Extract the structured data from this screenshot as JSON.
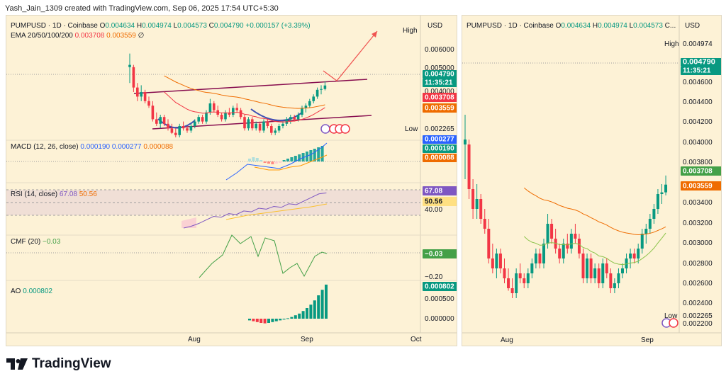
{
  "attribution": "Yash_Jain_1309 created with TradingView.com, Sep 06, 2025 17:54 UTC+5:30",
  "brand": "TradingView",
  "colors": {
    "background": "#fdf2d6",
    "up": "#089981",
    "down": "#f23645",
    "ema20": "#8bc34a",
    "ema200": "#ef6c00",
    "macd_line": "#2962ff",
    "signal_line": "#ff9800",
    "rsi": "#7e57c2",
    "cmf": "#43a047",
    "channel": "#880e4f",
    "arrow": "#ef5350",
    "cup": "#3f51b5"
  },
  "left": {
    "symbol_line": {
      "symbol": "PUMPUSD · 1D · Coinbase",
      "o": "0.004634",
      "h": "0.004974",
      "l": "0.004573",
      "c": "0.004790",
      "change": "+0.000157 (+3.39%)"
    },
    "ema_label": "EMA 20/50/100/200",
    "ema_values": [
      "0.003708",
      "0.003559",
      "∅"
    ],
    "currency": "USD",
    "high_label": "High",
    "low_label": "Low",
    "low_value": "0.002265",
    "price_ticks": [
      "0.006000",
      "0.005000",
      "0.004000"
    ],
    "price_badge": {
      "value": "0.004790",
      "countdown": "11:35:21"
    },
    "ema20_badge": "0.003708",
    "ema200_badge": "0.003559",
    "macd": {
      "label": "MACD (12, 26, close)",
      "macd": "0.000190",
      "signal": "0.000277",
      "hist": "0.000088",
      "badges": [
        "0.000277",
        "0.000190",
        "0.000088"
      ]
    },
    "rsi": {
      "label": "RSI (14, close)",
      "rsi": "67.08",
      "ma": "50.56",
      "tick": "40.00"
    },
    "cmf": {
      "label": "CMF (20)",
      "value": "−0.03",
      "tick": "−0.20"
    },
    "ao": {
      "label": "AO",
      "value": "0.000802",
      "ticks": [
        "0.000500",
        "0.000000"
      ]
    },
    "time_ticks": [
      "Aug",
      "Sep",
      "Oct"
    ]
  },
  "right": {
    "symbol_line": {
      "symbol": "PUMPUSD · 1D · Coinbase",
      "o": "0.004634",
      "h": "0.004974",
      "l": "0.004573",
      "c": "C..."
    },
    "currency": "USD",
    "high_label": "High",
    "high_value": "0.004974",
    "low_label": "Low",
    "low_value": "0.002265",
    "price_badge": {
      "value": "0.004790",
      "countdown": "11:35:21"
    },
    "ema20_badge": "0.003708",
    "ema200_badge": "0.003559",
    "price_ticks": [
      "0.004600",
      "0.004400",
      "0.004200",
      "0.004000",
      "0.003800",
      "0.003400",
      "0.003200",
      "0.003000",
      "0.002800",
      "0.002600",
      "0.002400",
      "0.002200"
    ],
    "time_ticks": [
      "Aug",
      "Sep"
    ]
  },
  "chart_data": [
    {
      "type": "candlestick",
      "title": "PUMPUSD · 1D · Coinbase",
      "x_start": "2025-07-14",
      "x_end": "2025-09-06",
      "candles": [
        [
          0.0056,
          0.0062,
          0.0049,
          0.0057
        ],
        [
          0.0056,
          0.0057,
          0.0045,
          0.0047
        ],
        [
          0.0047,
          0.0049,
          0.0041,
          0.0043
        ],
        [
          0.0043,
          0.0048,
          0.0041,
          0.0045
        ],
        [
          0.0045,
          0.0046,
          0.004,
          0.0041
        ],
        [
          0.0041,
          0.0043,
          0.0038,
          0.0039
        ],
        [
          0.0039,
          0.0041,
          0.0032,
          0.0033
        ],
        [
          0.0033,
          0.0036,
          0.003,
          0.0031
        ],
        [
          0.0031,
          0.0035,
          0.0029,
          0.0034
        ],
        [
          0.0034,
          0.0035,
          0.003,
          0.0031
        ],
        [
          0.0031,
          0.0033,
          0.0028,
          0.0029
        ],
        [
          0.0029,
          0.0031,
          0.00265,
          0.0027
        ],
        [
          0.0027,
          0.0029,
          0.0025,
          0.0026
        ],
        [
          0.0026,
          0.0031,
          0.0025,
          0.003
        ],
        [
          0.003,
          0.0032,
          0.0028,
          0.0029
        ],
        [
          0.0029,
          0.003,
          0.0027,
          0.0028
        ],
        [
          0.0028,
          0.0031,
          0.0027,
          0.003
        ],
        [
          0.003,
          0.0033,
          0.0029,
          0.0032
        ],
        [
          0.0032,
          0.0035,
          0.0031,
          0.0034
        ],
        [
          0.0034,
          0.0035,
          0.0031,
          0.0032
        ],
        [
          0.0032,
          0.0037,
          0.0031,
          0.0036
        ],
        [
          0.0036,
          0.0042,
          0.0035,
          0.004
        ],
        [
          0.004,
          0.0041,
          0.0036,
          0.0037
        ],
        [
          0.0037,
          0.0039,
          0.0034,
          0.0035
        ],
        [
          0.0035,
          0.0036,
          0.0032,
          0.0033
        ],
        [
          0.0033,
          0.0037,
          0.0032,
          0.0036
        ],
        [
          0.0036,
          0.0038,
          0.0034,
          0.0035
        ],
        [
          0.0035,
          0.0039,
          0.0034,
          0.0038
        ],
        [
          0.0038,
          0.004,
          0.0036,
          0.0037
        ],
        [
          0.0037,
          0.0038,
          0.0033,
          0.0034
        ],
        [
          0.0034,
          0.0035,
          0.0028,
          0.0029
        ],
        [
          0.0029,
          0.0034,
          0.0028,
          0.0033
        ],
        [
          0.0033,
          0.0034,
          0.0028,
          0.0029
        ],
        [
          0.0029,
          0.0032,
          0.0028,
          0.0031
        ],
        [
          0.0031,
          0.0032,
          0.0027,
          0.0028
        ],
        [
          0.0028,
          0.0033,
          0.0027,
          0.0032
        ],
        [
          0.0032,
          0.0033,
          0.0029,
          0.003
        ],
        [
          0.003,
          0.0031,
          0.0026,
          0.0027
        ],
        [
          0.0027,
          0.0029,
          0.0026,
          0.0028
        ],
        [
          0.0028,
          0.0031,
          0.0027,
          0.003
        ],
        [
          0.003,
          0.0032,
          0.0029,
          0.0031
        ],
        [
          0.0031,
          0.0034,
          0.003,
          0.0033
        ],
        [
          0.0033,
          0.0035,
          0.0031,
          0.0034
        ],
        [
          0.0034,
          0.0035,
          0.0032,
          0.0033
        ],
        [
          0.0033,
          0.0036,
          0.0032,
          0.0035
        ],
        [
          0.0035,
          0.0039,
          0.0034,
          0.0038
        ],
        [
          0.0038,
          0.004,
          0.0036,
          0.0039
        ],
        [
          0.0039,
          0.0042,
          0.0038,
          0.0041
        ],
        [
          0.0041,
          0.0044,
          0.004,
          0.0043
        ],
        [
          0.0043,
          0.0047,
          0.0042,
          0.0046
        ],
        [
          0.0046,
          0.0048,
          0.0044,
          0.004634
        ],
        [
          0.004634,
          0.004974,
          0.004573,
          0.00479
        ]
      ],
      "ema20_end": 0.003708,
      "ema200_end": 0.003559,
      "ylim": [
        0.0021,
        0.0066
      ]
    },
    {
      "type": "bar",
      "title": "AO",
      "values": [
        -4e-05,
        -6e-05,
        -8e-05,
        -0.0001,
        -0.00011,
        -0.0001,
        -8e-05,
        -6e-05,
        -4e-05,
        -2e-05,
        1e-05,
        4e-05,
        8e-05,
        0.00012,
        0.00018,
        0.00025,
        0.00033,
        0.00043,
        0.00055,
        0.00068,
        0.000802
      ]
    },
    {
      "type": "line",
      "title": "RSI (14, close)",
      "values": [
        28,
        30,
        33,
        37,
        41,
        40,
        44,
        43,
        47,
        46,
        50,
        49,
        52,
        51,
        55,
        54,
        58,
        62,
        66,
        67.08
      ]
    }
  ]
}
